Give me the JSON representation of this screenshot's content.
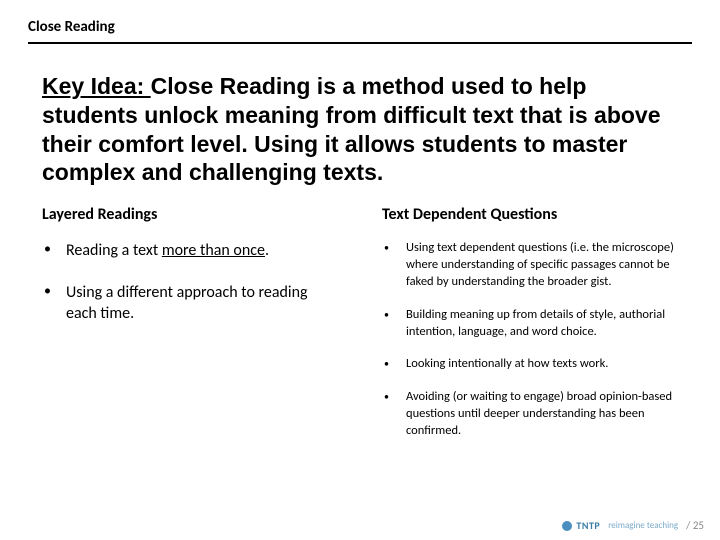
{
  "header": {
    "title": "Close Reading"
  },
  "key_idea": {
    "label": "Key Idea: ",
    "text": "Close Reading is a method used to help students unlock meaning from difficult text that is above their comfort level.  Using it allows students to master complex and challenging texts."
  },
  "left": {
    "title": "Layered Readings",
    "items": [
      {
        "prefix": "Reading a text ",
        "underline": "more than once",
        "suffix": "."
      },
      {
        "prefix": "Using a different approach to reading each time.",
        "underline": "",
        "suffix": ""
      }
    ]
  },
  "right": {
    "title": "Text Dependent Questions",
    "items": [
      "Using text dependent questions (i.e. the microscope) where understanding of specific passages cannot be faked by understanding the broader gist.",
      "Building meaning up from details of style, authorial intention, language, and word choice.",
      "Looking intentionally at how texts work.",
      "Avoiding (or waiting to engage) broad opinion-based questions until deeper understanding has been confirmed."
    ]
  },
  "footer": {
    "brand": "TNTP",
    "tagline": "reimagine teaching",
    "page": "/ 25"
  },
  "colors": {
    "text": "#000000",
    "rule": "#000000",
    "brand": "#4a8fbf",
    "brand_light": "#7aa9c9",
    "pagenum": "#888888",
    "background": "#ffffff"
  },
  "typography": {
    "header_fontsize": 15,
    "keyidea_fontsize": 23,
    "col_title_fontsize": 16,
    "left_bullet_fontsize": 16,
    "right_bullet_fontsize": 12.5,
    "footer_fontsize": 10
  }
}
